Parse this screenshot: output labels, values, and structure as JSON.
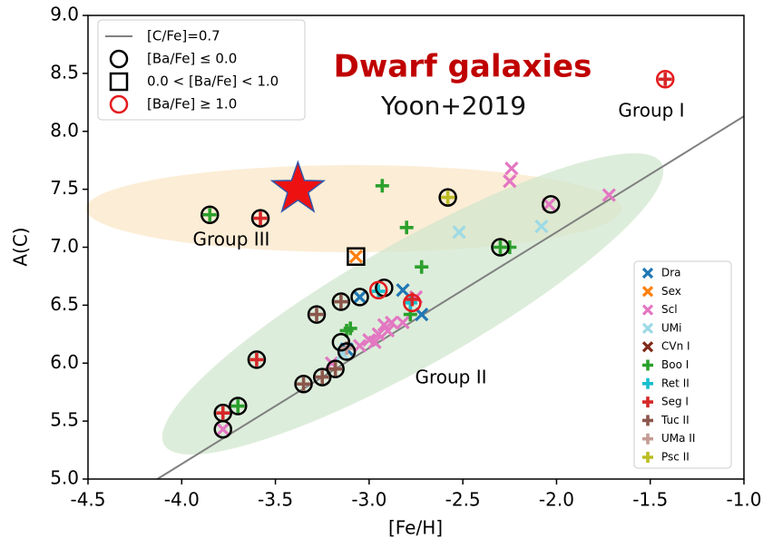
{
  "chart_data": {
    "type": "scatter",
    "title": "Dwarf galaxies",
    "subtitle": "Yoon+2019",
    "x_label": "[Fe/H]",
    "y_label": "A(C)",
    "annotations": [
      "Group I",
      "Group II",
      "Group III"
    ],
    "xlim": [
      -4.5,
      -1.0
    ],
    "ylim": [
      5.0,
      9.0
    ],
    "xticks": [
      {
        "value": -4.5,
        "label": "-4.5"
      },
      {
        "value": -4.0,
        "label": "-4.0"
      },
      {
        "value": -3.5,
        "label": "-3.5"
      },
      {
        "value": -3.0,
        "label": "-3.0"
      },
      {
        "value": -2.5,
        "label": "-2.5"
      },
      {
        "value": -2.0,
        "label": "-2.0"
      },
      {
        "value": -1.5,
        "label": "-1.5"
      },
      {
        "value": -1.0,
        "label": "-1.0"
      }
    ],
    "yticks": [
      {
        "value": 5.0,
        "label": "5.0"
      },
      {
        "value": 5.5,
        "label": "5.5"
      },
      {
        "value": 6.0,
        "label": "6.0"
      },
      {
        "value": 6.5,
        "label": "6.5"
      },
      {
        "value": 7.0,
        "label": "7.0"
      },
      {
        "value": 7.5,
        "label": "7.5"
      },
      {
        "value": 8.0,
        "label": "8.0"
      },
      {
        "value": 8.5,
        "label": "8.5"
      },
      {
        "value": 9.0,
        "label": "9.0"
      }
    ],
    "series": [
      {
        "name": "[C/Fe]=0.7",
        "marker": "line",
        "color": "#808080",
        "x": [
          -4.13,
          -1.0
        ],
        "values": [
          5.0,
          8.13
        ]
      },
      {
        "name": "Dra",
        "marker": "x",
        "color": "#1f77b4",
        "x": [
          -3.12,
          -3.05,
          -2.82,
          -2.72
        ],
        "values": [
          6.12,
          6.57,
          6.63,
          6.42
        ]
      },
      {
        "name": "Sex",
        "marker": "x",
        "color": "#ff7f0e",
        "x": [
          -3.07
        ],
        "values": [
          6.92
        ]
      },
      {
        "name": "Scl",
        "marker": "x",
        "color": "#e377c2",
        "x": [
          -2.24,
          -2.25,
          -2.04,
          -1.72,
          -3.2,
          -3.0,
          -2.97,
          -2.92,
          -2.88,
          -2.95,
          -2.82,
          -2.75,
          -3.78,
          -3.05,
          -2.9
        ],
        "values": [
          7.68,
          7.57,
          7.37,
          7.45,
          6.0,
          6.2,
          6.18,
          6.33,
          6.35,
          6.25,
          6.35,
          6.57,
          5.43,
          6.15,
          6.28
        ]
      },
      {
        "name": "UMi",
        "marker": "x",
        "color": "#9edae5",
        "x": [
          -2.52,
          -2.08,
          -3.14
        ],
        "values": [
          7.13,
          7.18,
          6.08
        ]
      },
      {
        "name": "CVn I",
        "marker": "x",
        "color": "#7f2a1a",
        "x": [],
        "values": []
      },
      {
        "name": "Boo I",
        "marker": "plus",
        "color": "#2ca02c",
        "x": [
          -2.93,
          -2.8,
          -2.72,
          -3.85,
          -2.3,
          -2.25,
          -3.7,
          -3.12,
          -3.1,
          -2.78
        ],
        "values": [
          7.53,
          7.17,
          6.83,
          7.28,
          7.0,
          7.0,
          5.63,
          6.28,
          6.3,
          6.42
        ]
      },
      {
        "name": "Ret II",
        "marker": "plus",
        "color": "#17becf",
        "x": [
          -2.95,
          -2.78
        ],
        "values": [
          6.62,
          6.52
        ]
      },
      {
        "name": "Seg I",
        "marker": "plus",
        "color": "#d62728",
        "x": [
          -3.58,
          -3.6,
          -3.78,
          -1.42,
          -2.77
        ],
        "values": [
          7.25,
          6.03,
          5.57,
          8.45,
          6.55
        ]
      },
      {
        "name": "Tuc II",
        "marker": "plus",
        "color": "#8c564b",
        "x": [
          -3.28,
          -3.15,
          -3.35,
          -3.25,
          -3.18
        ],
        "values": [
          6.42,
          6.53,
          5.82,
          5.88,
          5.95
        ]
      },
      {
        "name": "UMa II",
        "marker": "plus",
        "color": "#c49c94",
        "x": [
          -3.12
        ],
        "values": [
          6.13
        ]
      },
      {
        "name": "Psc II",
        "marker": "plus",
        "color": "#bcbd22",
        "x": [
          -2.58
        ],
        "values": [
          7.43
        ]
      },
      {
        "name": "[Ba/Fe] ≤ 0.0",
        "marker": "circle",
        "color": "#000000",
        "x": [
          -3.85,
          -3.58,
          -2.58,
          -2.03,
          -2.3,
          -3.28,
          -3.15,
          -3.05,
          -2.92,
          -3.15,
          -3.12,
          -3.6,
          -3.35,
          -3.25,
          -3.18,
          -3.7,
          -3.78,
          -3.78
        ],
        "values": [
          7.28,
          7.25,
          7.43,
          7.37,
          7.0,
          6.42,
          6.53,
          6.57,
          6.65,
          6.18,
          6.1,
          6.03,
          5.82,
          5.88,
          5.95,
          5.63,
          5.57,
          5.43
        ]
      },
      {
        "name": "0.0 < [Ba/Fe] < 1.0",
        "marker": "square",
        "color": "#000000",
        "x": [
          -3.07
        ],
        "values": [
          6.92
        ]
      },
      {
        "name": "[Ba/Fe] ≥ 1.0",
        "marker": "circle",
        "color": "#e41a1c",
        "x": [
          -2.95,
          -2.77,
          -1.42
        ],
        "values": [
          6.63,
          6.52,
          8.45
        ]
      },
      {
        "marker": "star",
        "color": "#ee1111",
        "x": [
          -3.38
        ],
        "values": [
          7.5
        ]
      }
    ]
  }
}
